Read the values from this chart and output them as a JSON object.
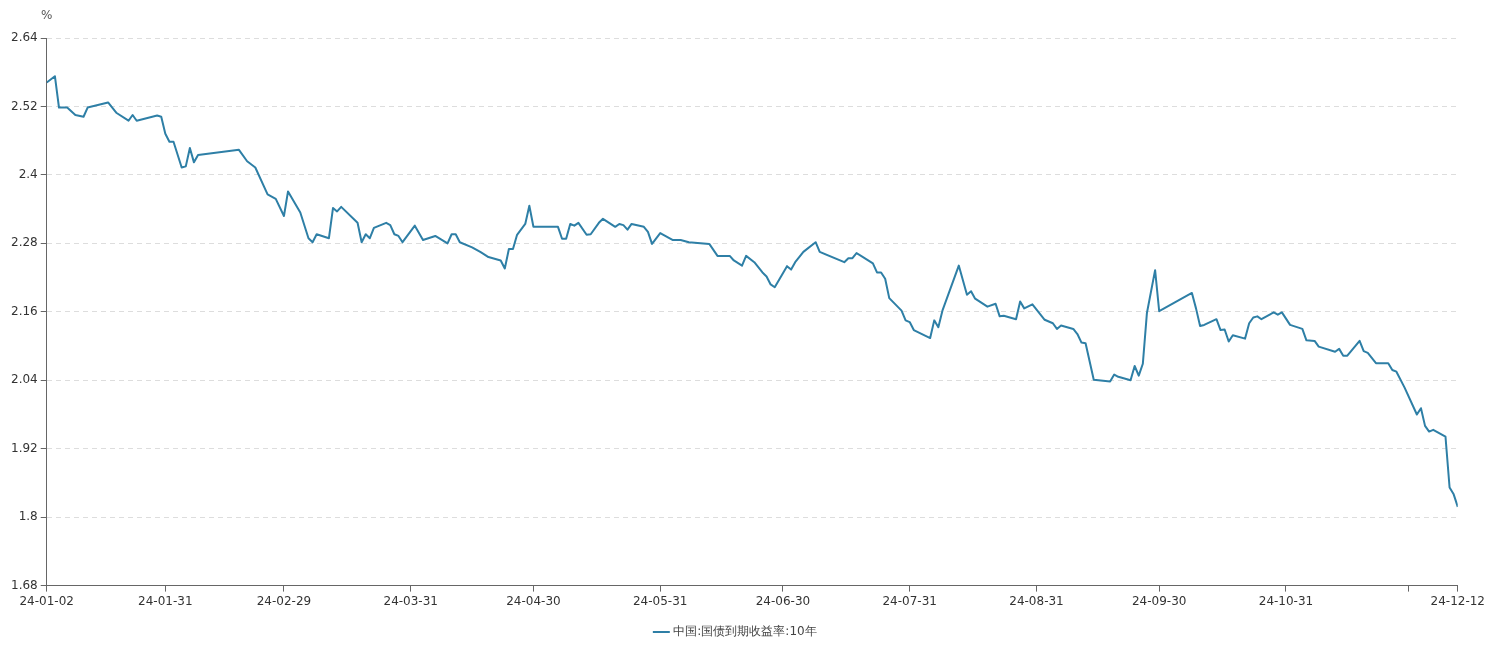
{
  "chart_data": {
    "type": "line",
    "ylabel": "%",
    "legend": "bottom",
    "grid": "y",
    "marker": "none",
    "line_style": "solid",
    "xlim": [
      "--01-02",
      "--12-12"
    ],
    "ylim": [
      1.68,
      2.64
    ],
    "yticks": [
      1.68,
      1.8,
      1.92,
      2.04,
      2.16,
      2.28,
      2.4,
      2.52,
      2.64
    ],
    "xticks": [
      {
        "value": "--01-02",
        "label": "24-01-02"
      },
      {
        "value": "--01-31",
        "label": "24-01-31"
      },
      {
        "value": "--02-29",
        "label": "24-02-29"
      },
      {
        "value": "--03-31",
        "label": "24-03-31"
      },
      {
        "value": "--04-30",
        "label": "24-04-30"
      },
      {
        "value": "--05-31",
        "label": "24-05-31"
      },
      {
        "value": "--06-30",
        "label": "24-06-30"
      },
      {
        "value": "--07-31",
        "label": "24-07-31"
      },
      {
        "value": "--08-31",
        "label": "24-08-31"
      },
      {
        "value": "--09-30",
        "label": "24-09-30"
      },
      {
        "value": "--10-31",
        "label": "24-10-31"
      },
      {
        "value": "--11-30",
        "label": null
      },
      {
        "value": "--12-12",
        "label": "24-12-12"
      }
    ],
    "x": [
      "--01-02",
      "--01-04",
      "--01-05",
      "--01-07",
      "--01-09",
      "--01-11",
      "--01-12",
      "--01-17",
      "--01-19",
      "--01-22",
      "--01-23",
      "--01-24",
      "--01-29",
      "--01-30",
      "--01-31",
      "--02-01",
      "--02-02",
      "--02-04",
      "--02-05",
      "--02-06",
      "--02-07",
      "--02-08",
      "--02-18",
      "--02-20",
      "--02-22",
      "--02-25",
      "--02-27",
      "--02-29",
      "--03-01",
      "--03-04",
      "--03-06",
      "--03-07",
      "--03-08",
      "--03-11",
      "--03-12",
      "--03-13",
      "--03-14",
      "--03-18",
      "--03-19",
      "--03-20",
      "--03-21",
      "--03-22",
      "--03-25",
      "--03-26",
      "--03-27",
      "--03-28",
      "--03-29",
      "--04-01",
      "--04-03",
      "--04-06",
      "--04-09",
      "--04-10",
      "--04-11",
      "--04-12",
      "--04-15",
      "--04-17",
      "--04-19",
      "--04-22",
      "--04-23",
      "--04-24",
      "--04-25",
      "--04-26",
      "--04-28",
      "--04-29",
      "--04-30",
      "--05-06",
      "--05-07",
      "--05-08",
      "--05-09",
      "--05-10",
      "--05-11",
      "--05-13",
      "--05-14",
      "--05-16",
      "--05-17",
      "--05-20",
      "--05-21",
      "--05-22",
      "--05-23",
      "--05-24",
      "--05-27",
      "--05-28",
      "--05-29",
      "--05-31",
      "--06-03",
      "--06-05",
      "--06-07",
      "--06-12",
      "--06-14",
      "--06-17",
      "--06-18",
      "--06-20",
      "--06-21",
      "--06-23",
      "--06-25",
      "--06-26",
      "--06-27",
      "--06-28",
      "--07-01",
      "--07-02",
      "--07-03",
      "--07-05",
      "--07-08",
      "--07-09",
      "--07-15",
      "--07-16",
      "--07-17",
      "--07-18",
      "--07-22",
      "--07-23",
      "--07-24",
      "--07-25",
      "--07-26",
      "--07-29",
      "--07-30",
      "--07-31",
      "--08-01",
      "--08-05",
      "--08-06",
      "--08-07",
      "--08-08",
      "--08-12",
      "--08-14",
      "--08-15",
      "--08-16",
      "--08-19",
      "--08-21",
      "--08-22",
      "--08-23",
      "--08-26",
      "--08-27",
      "--08-28",
      "--08-30",
      "--09-02",
      "--09-04",
      "--09-05",
      "--09-06",
      "--09-09",
      "--09-10",
      "--09-11",
      "--09-12",
      "--09-14",
      "--09-18",
      "--09-19",
      "--09-20",
      "--09-23",
      "--09-24",
      "--09-25",
      "--09-26",
      "--09-27",
      "--09-29",
      "--09-30",
      "--10-08",
      "--10-09",
      "--10-10",
      "--10-11",
      "--10-14",
      "--10-15",
      "--10-16",
      "--10-17",
      "--10-18",
      "--10-21",
      "--10-22",
      "--10-23",
      "--10-24",
      "--10-25",
      "--10-28",
      "--10-29",
      "--10-30",
      "--11-01",
      "--11-04",
      "--11-05",
      "--11-07",
      "--11-08",
      "--11-12",
      "--11-13",
      "--11-14",
      "--11-15",
      "--11-18",
      "--11-19",
      "--11-20",
      "--11-22",
      "--11-25",
      "--11-26",
      "--11-27",
      "--11-29",
      "--12-02",
      "--12-03",
      "--12-04",
      "--12-05",
      "--12-06",
      "--12-09",
      "--12-10",
      "--12-11",
      "--12-12"
    ],
    "series": [
      {
        "name": "中国:国债到期收益率:10年",
        "color": "#2e7fa6",
        "values": [
          2.562,
          2.573,
          2.518,
          2.518,
          2.505,
          2.502,
          2.518,
          2.527,
          2.509,
          2.495,
          2.505,
          2.495,
          2.504,
          2.502,
          2.472,
          2.458,
          2.458,
          2.413,
          2.415,
          2.447,
          2.422,
          2.435,
          2.444,
          2.424,
          2.413,
          2.366,
          2.358,
          2.328,
          2.371,
          2.334,
          2.289,
          2.282,
          2.296,
          2.289,
          2.342,
          2.336,
          2.344,
          2.316,
          2.282,
          2.296,
          2.289,
          2.307,
          2.316,
          2.312,
          2.296,
          2.293,
          2.282,
          2.311,
          2.286,
          2.293,
          2.28,
          2.296,
          2.296,
          2.282,
          2.273,
          2.265,
          2.256,
          2.25,
          2.236,
          2.27,
          2.27,
          2.295,
          2.314,
          2.346,
          2.309,
          2.309,
          2.288,
          2.288,
          2.314,
          2.311,
          2.316,
          2.295,
          2.296,
          2.316,
          2.323,
          2.309,
          2.314,
          2.312,
          2.304,
          2.314,
          2.309,
          2.3,
          2.279,
          2.298,
          2.286,
          2.286,
          2.282,
          2.279,
          2.258,
          2.258,
          2.25,
          2.241,
          2.258,
          2.247,
          2.229,
          2.222,
          2.208,
          2.203,
          2.24,
          2.234,
          2.247,
          2.265,
          2.282,
          2.265,
          2.247,
          2.254,
          2.254,
          2.263,
          2.245,
          2.229,
          2.229,
          2.218,
          2.184,
          2.162,
          2.145,
          2.142,
          2.128,
          2.114,
          2.145,
          2.133,
          2.162,
          2.241,
          2.19,
          2.196,
          2.183,
          2.169,
          2.174,
          2.152,
          2.153,
          2.147,
          2.178,
          2.166,
          2.173,
          2.146,
          2.14,
          2.13,
          2.136,
          2.13,
          2.121,
          2.106,
          2.105,
          2.041,
          2.038,
          2.05,
          2.046,
          2.04,
          2.065,
          2.048,
          2.069,
          2.158,
          2.233,
          2.161,
          2.193,
          2.166,
          2.135,
          2.137,
          2.147,
          2.128,
          2.129,
          2.108,
          2.119,
          2.113,
          2.14,
          2.15,
          2.152,
          2.147,
          2.159,
          2.155,
          2.159,
          2.137,
          2.13,
          2.11,
          2.109,
          2.099,
          2.09,
          2.095,
          2.083,
          2.083,
          2.109,
          2.091,
          2.088,
          2.07,
          2.07,
          2.058,
          2.055,
          2.027,
          1.98,
          1.991,
          1.96,
          1.95,
          1.953,
          1.941,
          1.852,
          1.84,
          1.818
        ]
      }
    ]
  }
}
